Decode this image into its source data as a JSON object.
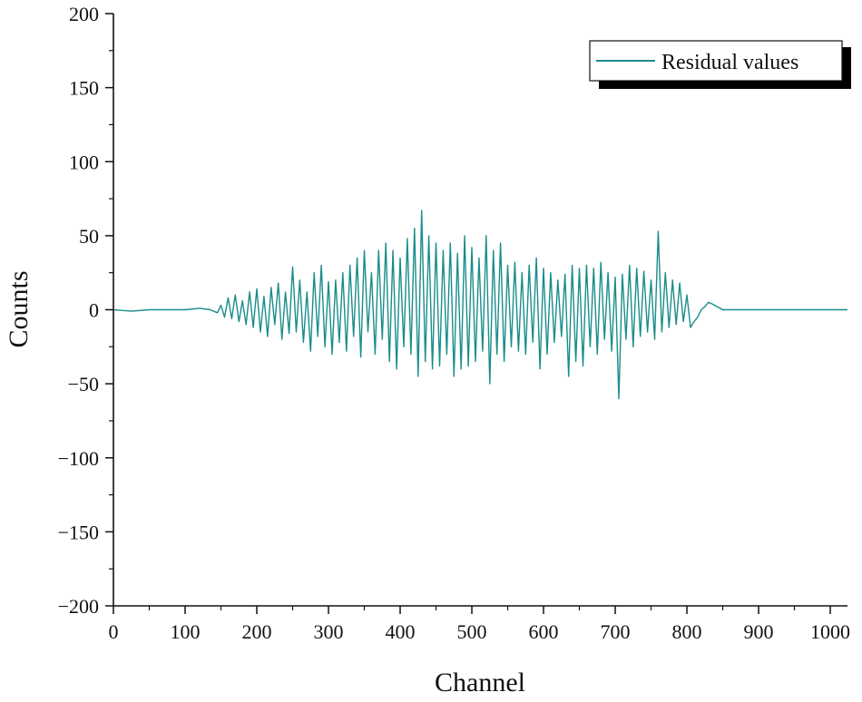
{
  "chart_data": {
    "type": "line",
    "title": "",
    "xlabel": "Channel",
    "ylabel": "Counts",
    "xlim": [
      0,
      1024
    ],
    "ylim": [
      -200,
      200
    ],
    "x_ticks": [
      0,
      100,
      200,
      300,
      400,
      500,
      600,
      700,
      800,
      900,
      1000
    ],
    "x_tick_labels": [
      "0",
      "100",
      "200",
      "300",
      "400",
      "500",
      "600",
      "700",
      "800",
      "900",
      "1000"
    ],
    "y_ticks": [
      200,
      150,
      100,
      50,
      0,
      -50,
      -100,
      -150,
      -200
    ],
    "y_tick_labels": [
      "200",
      "150",
      "100",
      "50",
      "0",
      "−50",
      "−100",
      "−150",
      "−200"
    ],
    "grid": false,
    "legend": {
      "position": "top-right",
      "entries": [
        "Residual values"
      ]
    },
    "series": [
      {
        "name": "Residual values",
        "color": "#1a8c8c",
        "x": [
          0,
          25,
          50,
          75,
          100,
          120,
          135,
          145,
          150,
          155,
          160,
          165,
          170,
          175,
          180,
          185,
          190,
          195,
          200,
          205,
          210,
          215,
          220,
          225,
          230,
          235,
          240,
          245,
          250,
          255,
          260,
          265,
          270,
          275,
          280,
          285,
          290,
          295,
          300,
          305,
          310,
          315,
          320,
          325,
          330,
          335,
          340,
          345,
          350,
          355,
          360,
          365,
          370,
          375,
          380,
          385,
          390,
          395,
          400,
          405,
          410,
          415,
          420,
          425,
          430,
          435,
          440,
          445,
          450,
          455,
          460,
          465,
          470,
          475,
          480,
          485,
          490,
          495,
          500,
          505,
          510,
          515,
          520,
          525,
          530,
          535,
          540,
          545,
          550,
          555,
          560,
          565,
          570,
          575,
          580,
          585,
          590,
          595,
          600,
          605,
          610,
          615,
          620,
          625,
          630,
          635,
          640,
          645,
          650,
          655,
          660,
          665,
          670,
          675,
          680,
          685,
          690,
          695,
          700,
          705,
          710,
          715,
          720,
          725,
          730,
          735,
          740,
          745,
          750,
          755,
          760,
          765,
          770,
          775,
          780,
          785,
          790,
          795,
          800,
          805,
          810,
          815,
          820,
          825,
          830,
          835,
          850,
          900,
          950,
          1000,
          1024
        ],
        "y": [
          0,
          -1,
          0,
          0,
          0,
          1,
          0,
          -2,
          3,
          -5,
          8,
          -6,
          10,
          -8,
          6,
          -10,
          12,
          -12,
          14,
          -15,
          9,
          -18,
          15,
          -10,
          18,
          -20,
          12,
          -16,
          29,
          -15,
          20,
          -22,
          12,
          -28,
          25,
          -18,
          30,
          -25,
          19,
          -30,
          20,
          -22,
          25,
          -28,
          30,
          -18,
          35,
          -32,
          40,
          -15,
          25,
          -30,
          40,
          -20,
          45,
          -35,
          40,
          -40,
          35,
          -25,
          48,
          -30,
          55,
          -45,
          67,
          -35,
          50,
          -40,
          45,
          -38,
          40,
          -30,
          45,
          -45,
          38,
          -40,
          50,
          -38,
          42,
          -35,
          35,
          -28,
          50,
          -50,
          40,
          -30,
          45,
          -35,
          30,
          -25,
          32,
          -28,
          25,
          -30,
          30,
          -22,
          35,
          -40,
          28,
          -30,
          25,
          -22,
          20,
          -18,
          24,
          -45,
          30,
          -35,
          28,
          -38,
          30,
          -25,
          28,
          -30,
          32,
          -20,
          25,
          -28,
          22,
          -60,
          24,
          -20,
          30,
          -25,
          28,
          -18,
          26,
          -15,
          20,
          -20,
          53,
          -15,
          25,
          -12,
          20,
          -10,
          18,
          -8,
          10,
          -12,
          -8,
          -5,
          0,
          2,
          5,
          4,
          0,
          0,
          0,
          0,
          0
        ]
      }
    ]
  }
}
